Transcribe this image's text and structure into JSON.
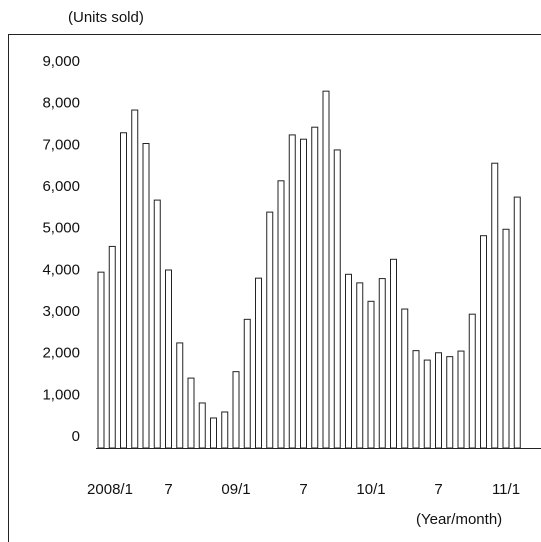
{
  "chart_data": {
    "type": "bar",
    "y_label": "(Units sold)",
    "x_label": "(Year/month)",
    "categories": [
      "2008/1",
      null,
      null,
      null,
      null,
      null,
      "7",
      null,
      null,
      null,
      null,
      null,
      "09/1",
      null,
      null,
      null,
      null,
      null,
      "7",
      null,
      null,
      null,
      null,
      null,
      "10/1",
      null,
      null,
      null,
      null,
      null,
      "7",
      null,
      null,
      null,
      null,
      null,
      "11/1",
      null
    ],
    "values": [
      4100,
      4700,
      7350,
      7880,
      7100,
      5780,
      4150,
      2450,
      1630,
      1050,
      700,
      840,
      1780,
      3000,
      3960,
      5500,
      6230,
      7300,
      7200,
      7480,
      8320,
      6950,
      4050,
      3850,
      3420,
      3950,
      4400,
      3240,
      2270,
      2050,
      2220,
      2130,
      2260,
      3120,
      4950,
      6640,
      5100,
      5850
    ],
    "color": "#ffffff",
    "ylim": [
      0,
      9000
    ],
    "yticks": [
      0,
      {
        "value": 1000,
        "label": "1,000"
      },
      {
        "value": 2000,
        "label": "2,000"
      },
      {
        "value": 3000,
        "label": "3,000"
      },
      {
        "value": 4000,
        "label": "4,000"
      },
      {
        "value": 5000,
        "label": "5,000"
      },
      {
        "value": 6000,
        "label": "6,000"
      },
      {
        "value": 7000,
        "label": "7,000"
      },
      {
        "value": 8000,
        "label": "8,000"
      },
      {
        "value": 9000,
        "label": "9,000"
      }
    ],
    "grid": false
  }
}
